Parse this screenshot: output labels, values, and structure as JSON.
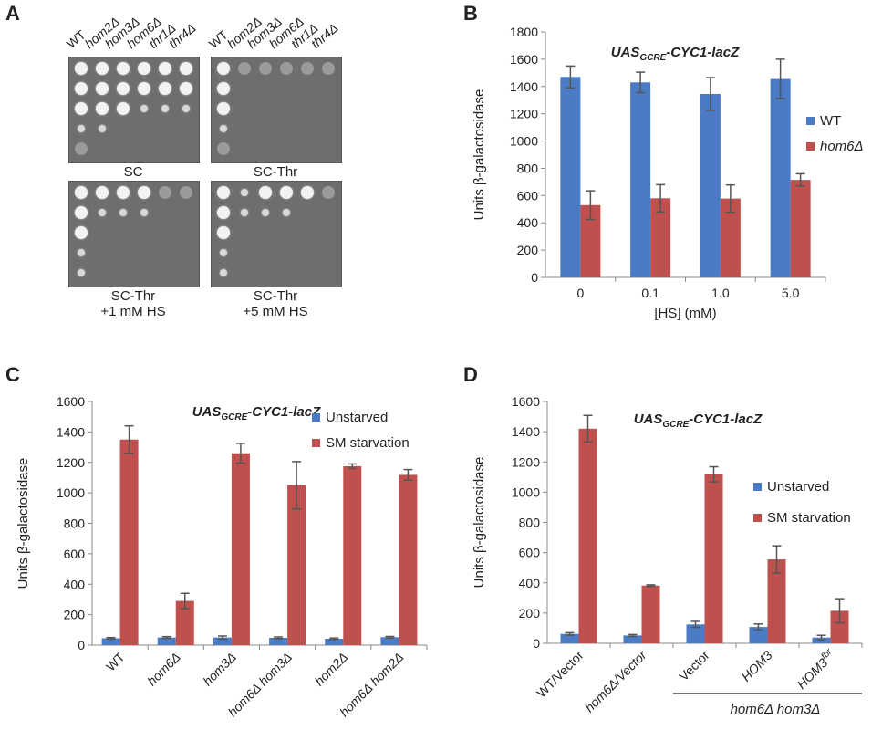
{
  "panel_letters": [
    "A",
    "B",
    "C",
    "D"
  ],
  "panel_a": {
    "strains": [
      "WT",
      "hom2Δ",
      "hom3Δ",
      "hom6Δ",
      "thr1Δ",
      "thr4Δ"
    ],
    "plates": [
      {
        "label_line1": "SC",
        "label_line2": ""
      },
      {
        "label_line1": "SC-Thr",
        "label_line2": ""
      },
      {
        "label_line1": "SC-Thr",
        "label_line2": "+1 mM HS"
      },
      {
        "label_line1": "SC-Thr",
        "label_line2": "+5 mM HS"
      }
    ]
  },
  "colors": {
    "blue": "#4a7bc4",
    "red": "#c0504d",
    "error": "#555555",
    "axis": "#888888"
  },
  "chart_data": [
    {
      "panel": "B",
      "type": "bar",
      "title": "UAS",
      "title_sub": "GCRE",
      "title_rest": "-CYC1-lacZ",
      "xlabel": "[HS] (mM)",
      "ylabel": "Units β-galactosidase",
      "ylim": [
        0,
        1800
      ],
      "yticks": [
        0,
        200,
        400,
        600,
        800,
        1000,
        1200,
        1400,
        1600,
        1800
      ],
      "categories": [
        "0",
        "0.1",
        "1.0",
        "5.0"
      ],
      "legend_position": "right",
      "series": [
        {
          "name": "WT",
          "values": [
            1470,
            1430,
            1345,
            1455
          ],
          "errors": [
            80,
            75,
            120,
            145
          ]
        },
        {
          "name": "hom6Δ",
          "values": [
            530,
            580,
            578,
            715
          ],
          "errors": [
            105,
            100,
            100,
            45
          ]
        }
      ]
    },
    {
      "panel": "C",
      "type": "bar",
      "title": "UAS",
      "title_sub": "GCRE",
      "title_rest": "-CYC1-lacZ",
      "xlabel": "",
      "ylabel": "Units β-galactosidase",
      "ylim": [
        0,
        1600
      ],
      "yticks": [
        0,
        200,
        400,
        600,
        800,
        1000,
        1200,
        1400,
        1600
      ],
      "categories": [
        "WT",
        "hom6Δ",
        "hom3Δ",
        "hom6Δ hom3Δ",
        "hom2Δ",
        "hom6Δ hom2Δ"
      ],
      "legend_position": "top-right",
      "series": [
        {
          "name": "Unstarved",
          "values": [
            45,
            50,
            50,
            48,
            42,
            52
          ],
          "errors": [
            5,
            6,
            10,
            6,
            5,
            5
          ]
        },
        {
          "name": "SM starvation",
          "values": [
            1350,
            290,
            1260,
            1050,
            1175,
            1118
          ],
          "errors": [
            90,
            50,
            65,
            155,
            15,
            35
          ]
        }
      ]
    },
    {
      "panel": "D",
      "type": "bar",
      "title": "UAS",
      "title_sub": "GCRE",
      "title_rest": "-CYC1-lacZ",
      "xlabel": "",
      "ylabel": "Units β-galactosidase",
      "ylim": [
        0,
        1600
      ],
      "yticks": [
        0,
        200,
        400,
        600,
        800,
        1000,
        1200,
        1400,
        1600
      ],
      "categories": [
        "WT/Vector",
        "hom6Δ/Vector",
        "Vector",
        "HOM3",
        "HOM3"
      ],
      "category_sup": [
        "",
        "",
        "",
        "",
        "fbr"
      ],
      "group_label": "hom6Δ hom3Δ",
      "legend_position": "right",
      "series": [
        {
          "name": "Unstarved",
          "values": [
            62,
            52,
            125,
            108,
            38
          ],
          "errors": [
            8,
            6,
            20,
            20,
            15
          ]
        },
        {
          "name": "SM starvation",
          "values": [
            1420,
            382,
            1118,
            555,
            215
          ],
          "errors": [
            88,
            5,
            50,
            90,
            80
          ]
        }
      ]
    }
  ]
}
